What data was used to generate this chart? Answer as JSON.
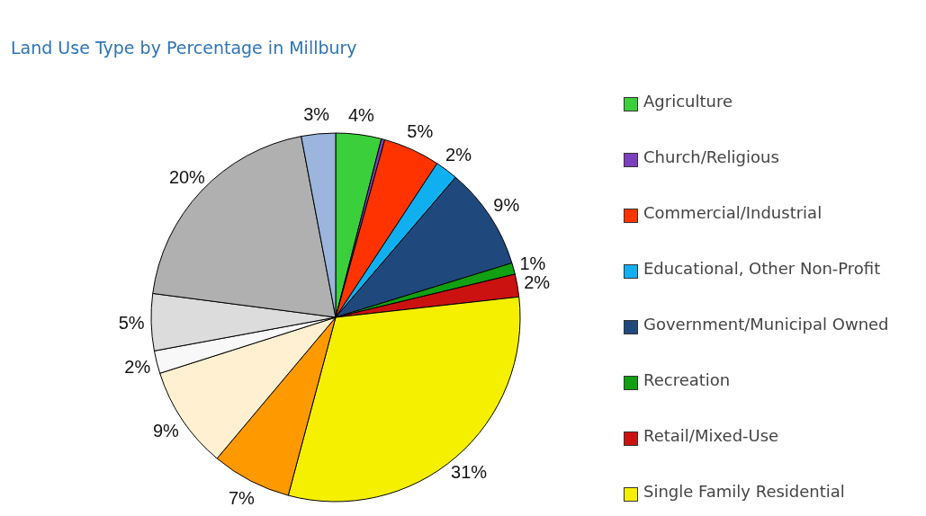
{
  "chart_data": {
    "type": "pie",
    "title": "Land Use Type by Percentage in Millbury",
    "categories": [
      "Agriculture",
      "Church/Religious",
      "Commercial/Industrial",
      "Educational, Other Non-Profit",
      "Government/Municipal Owned",
      "Recreation",
      "Retail/Mixed-Use",
      "Single Family Residential",
      null,
      null,
      null,
      null,
      null,
      null
    ],
    "values": [
      4,
      0.3,
      5,
      2,
      9,
      1,
      2,
      31,
      7,
      9,
      2,
      5,
      20,
      3
    ],
    "value_labels": [
      "4%",
      null,
      "5%",
      "2%",
      "9%",
      "1%",
      "2%",
      "31%",
      "7%",
      "9%",
      "2%",
      "5%",
      "20%",
      "3%"
    ],
    "colors": [
      "#3ccf3c",
      "#7b3fbf",
      "#ff3300",
      "#10b0f0",
      "#1f497d",
      "#11a011",
      "#cc1111",
      "#f5f000",
      "#ff9900",
      "#fff0d2",
      "#f8f8f8",
      "#dcdcdc",
      "#b0b0b0",
      "#9bb5dc"
    ],
    "legend": "right"
  }
}
